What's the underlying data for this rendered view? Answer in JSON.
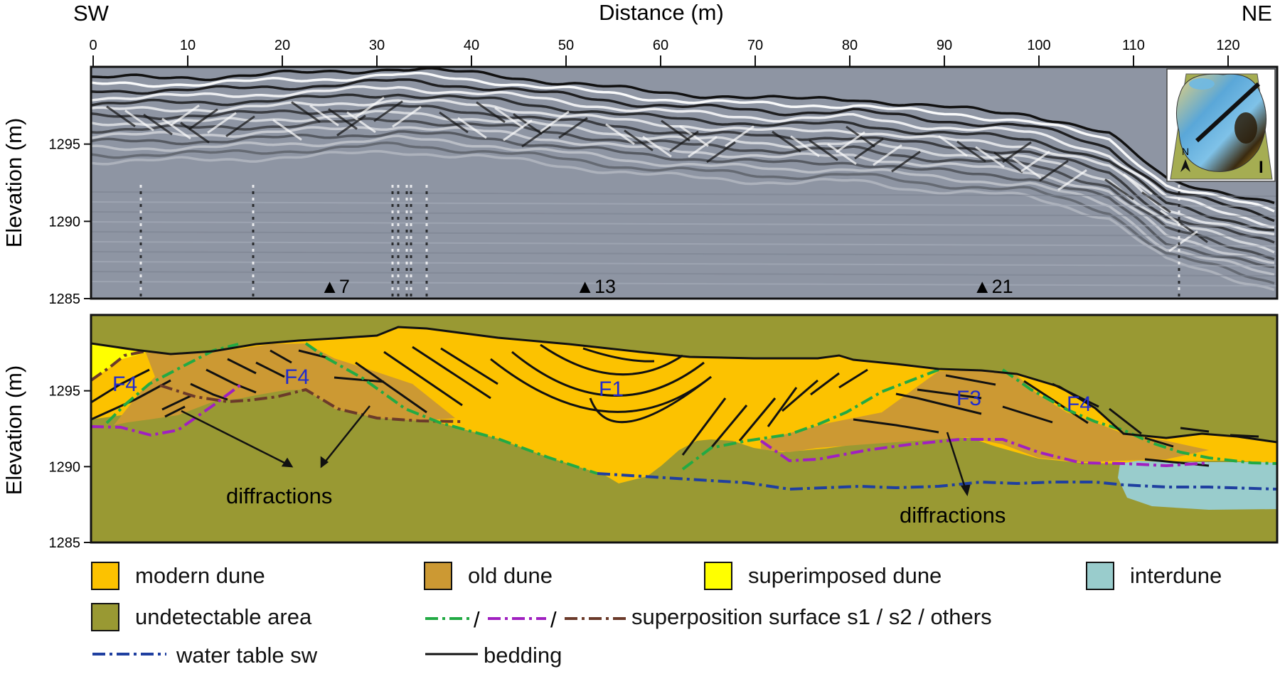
{
  "header": {
    "left_direction": "SW",
    "right_direction": "NE",
    "x_axis_title": "Distance (m)",
    "x_ticks": [
      "0",
      "10",
      "20",
      "30",
      "40",
      "50",
      "60",
      "70",
      "80",
      "90",
      "100",
      "110",
      "120"
    ]
  },
  "upper_panel": {
    "y_axis_title": "Elevation (m)",
    "y_ticks": [
      "1295",
      "1290",
      "1285"
    ],
    "markers": [
      {
        "label": "▲7",
        "distance_m": 24
      },
      {
        "label": "▲13",
        "distance_m": 51
      },
      {
        "label": "▲21",
        "distance_m": 93
      }
    ],
    "inset_label": "I",
    "inset_north": "N"
  },
  "lower_panel": {
    "y_axis_title": "Elevation (m)",
    "y_ticks": [
      "1295",
      "1290",
      "1285"
    ],
    "facies_labels": [
      "F4",
      "F4",
      "F1",
      "F3",
      "F4"
    ],
    "annotation_left": "diffractions",
    "annotation_right": "diffractions"
  },
  "legend": {
    "modern_dune": "modern dune",
    "old_dune": "old dune",
    "superimposed_dune": "superimposed dune",
    "interdune": "interdune",
    "undetectable_area": "undetectable area",
    "superposition_surface": "superposition surface s1 / s2 / others",
    "water_table": "water table sw",
    "bedding": "bedding",
    "slash": "/"
  },
  "colors": {
    "modern_dune": "#fcc200",
    "old_dune": "#cc9933",
    "superimposed_dune": "#ffff00",
    "interdune": "#99cccc",
    "undetectable_area": "#999933",
    "s1": "#22aa44",
    "s2": "#a020c0",
    "others": "#6b3a2a",
    "water_table": "#1f3fa0",
    "bedding": "#111111"
  }
}
